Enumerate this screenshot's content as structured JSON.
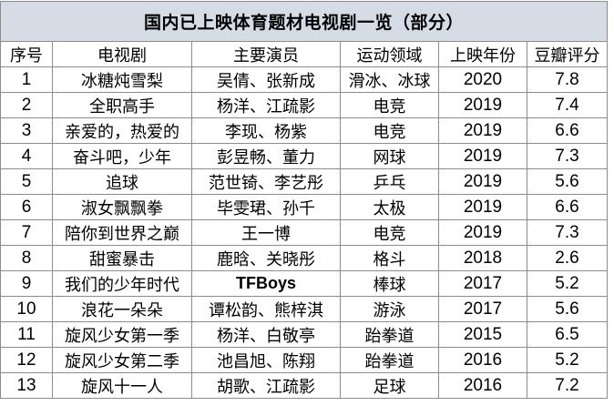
{
  "title": "国内已上映体育题材电视剧一览（部分）",
  "headers": [
    "序号",
    "电视剧",
    "主要演员",
    "运动领域",
    "上映年份",
    "豆瓣评分"
  ],
  "rows": [
    {
      "no": "1",
      "drama": "冰糖炖雪梨",
      "actors": "吴倩、张新成",
      "sport": "滑冰、冰球",
      "year": "2020",
      "rating": "7.8"
    },
    {
      "no": "2",
      "drama": "全职高手",
      "actors": "杨洋、江疏影",
      "sport": "电竞",
      "year": "2019",
      "rating": "7.4"
    },
    {
      "no": "3",
      "drama": "亲爱的，热爱的",
      "actors": "李现、杨紫",
      "sport": "电竞",
      "year": "2019",
      "rating": "6.6"
    },
    {
      "no": "4",
      "drama": "奋斗吧，少年",
      "actors": "彭昱畅、董力",
      "sport": "网球",
      "year": "2019",
      "rating": "7.3"
    },
    {
      "no": "5",
      "drama": "追球",
      "actors": "范世锜、李艺彤",
      "sport": "乒乓",
      "year": "2019",
      "rating": "5.6"
    },
    {
      "no": "6",
      "drama": "淑女飘飘拳",
      "actors": "毕雯珺、孙千",
      "sport": "太极",
      "year": "2019",
      "rating": "6.6"
    },
    {
      "no": "7",
      "drama": "陪你到世界之巅",
      "actors": "王一博",
      "sport": "电竞",
      "year": "2019",
      "rating": "7.3"
    },
    {
      "no": "8",
      "drama": "甜蜜暴击",
      "actors": "鹿晗、关晓彤",
      "sport": "格斗",
      "year": "2018",
      "rating": "2.6"
    },
    {
      "no": "9",
      "drama": "我们的少年时代",
      "actors": "TFBoys",
      "sport": "棒球",
      "year": "2017",
      "rating": "5.2"
    },
    {
      "no": "10",
      "drama": "浪花一朵朵",
      "actors": "谭松韵、熊梓淇",
      "sport": "游泳",
      "year": "2017",
      "rating": "5.6"
    },
    {
      "no": "11",
      "drama": "旋风少女第一季",
      "actors": "杨洋、白敬亭",
      "sport": "跆拳道",
      "year": "2015",
      "rating": "6.5"
    },
    {
      "no": "12",
      "drama": "旋风少女第二季",
      "actors": "池昌旭、陈翔",
      "sport": "跆拳道",
      "year": "2016",
      "rating": "5.2"
    },
    {
      "no": "13",
      "drama": "旋风十一人",
      "actors": "胡歌、江疏影",
      "sport": "足球",
      "year": "2016",
      "rating": "7.2"
    }
  ]
}
